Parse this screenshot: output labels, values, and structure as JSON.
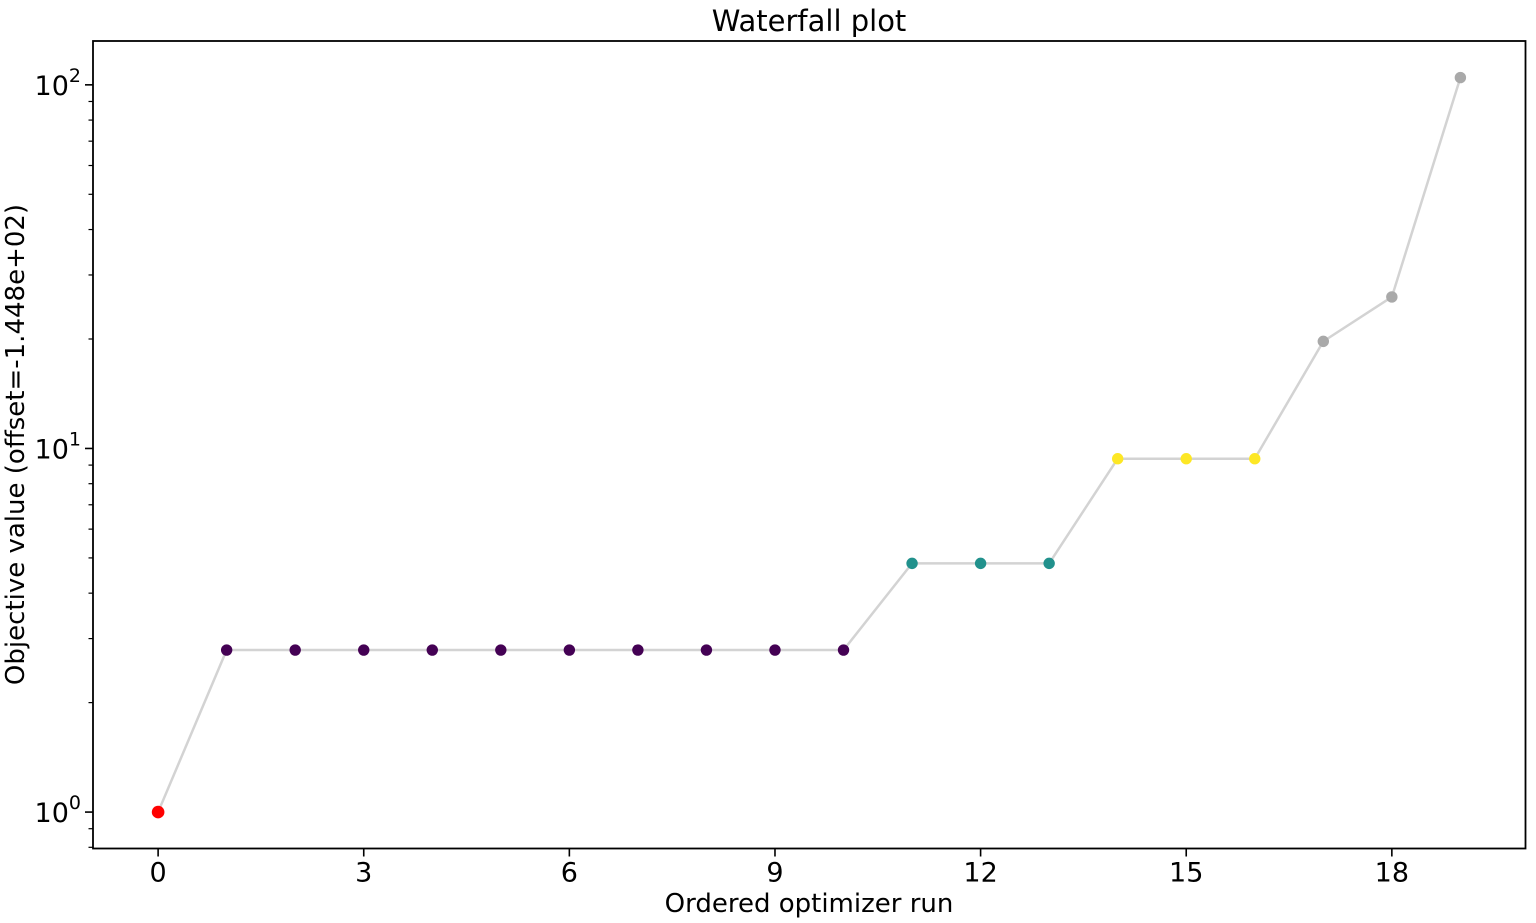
{
  "chart_data": {
    "type": "line",
    "title": "Waterfall plot",
    "xlabel": "Ordered optimizer run",
    "ylabel": "Objective value (offset=-1.448e+02)",
    "yscale": "log",
    "xlim": [
      -0.95,
      19.95
    ],
    "ylim": [
      0.794,
      132
    ],
    "grid": false,
    "legend": "none",
    "x": [
      0,
      1,
      2,
      3,
      4,
      5,
      6,
      7,
      8,
      9,
      10,
      11,
      12,
      13,
      14,
      15,
      16,
      17,
      18,
      19
    ],
    "y": [
      1.0,
      2.79,
      2.79,
      2.79,
      2.79,
      2.79,
      2.79,
      2.79,
      2.79,
      2.79,
      2.79,
      4.83,
      4.83,
      4.83,
      9.37,
      9.37,
      9.37,
      19.7,
      26.1,
      104.7
    ],
    "point_colors": [
      "#ff0000",
      "#440154",
      "#440154",
      "#440154",
      "#440154",
      "#440154",
      "#440154",
      "#440154",
      "#440154",
      "#440154",
      "#440154",
      "#21918c",
      "#21918c",
      "#21918c",
      "#fde725",
      "#fde725",
      "#fde725",
      "#a9a9a9",
      "#a9a9a9",
      "#a9a9a9"
    ],
    "line_color": "#d3d3d3",
    "axis_color": "#000000",
    "x_ticks": [
      {
        "value": 0,
        "label": "0"
      },
      {
        "value": 3,
        "label": "3"
      },
      {
        "value": 6,
        "label": "6"
      },
      {
        "value": 9,
        "label": "9"
      },
      {
        "value": 12,
        "label": "12"
      },
      {
        "value": 15,
        "label": "15"
      },
      {
        "value": 18,
        "label": "18"
      }
    ],
    "y_ticks": [
      {
        "value": 1,
        "base": "10",
        "exp": "0"
      },
      {
        "value": 10,
        "base": "10",
        "exp": "1"
      },
      {
        "value": 100,
        "base": "10",
        "exp": "2"
      }
    ],
    "y_minor_ticks": [
      0.8,
      0.9,
      2,
      3,
      4,
      5,
      6,
      7,
      8,
      9,
      20,
      30,
      40,
      50,
      60,
      70,
      80,
      90
    ],
    "marker_radius": 5.7,
    "first_marker_radius": 6.3
  }
}
